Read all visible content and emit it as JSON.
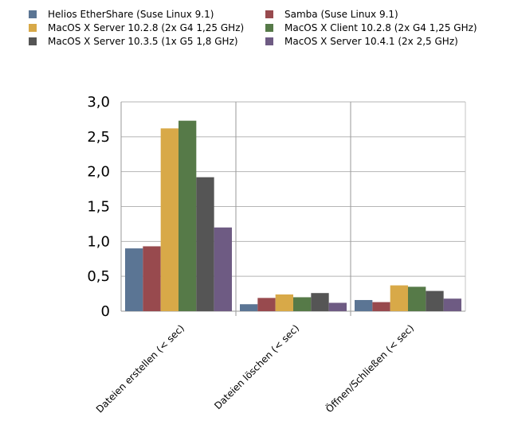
{
  "chart_data": {
    "type": "bar",
    "title": "",
    "xlabel": "",
    "ylabel": "",
    "ylim": [
      0,
      3.0
    ],
    "yticks": [
      "0",
      "0,5",
      "1,0",
      "1,5",
      "2,0",
      "2,5",
      "3,0"
    ],
    "grid": true,
    "legend_position": "top",
    "categories": [
      "Dateien erstellen (< sec)",
      "Dateien löschen (< sec)",
      "Öffnen/Schließen (< sec)"
    ],
    "series": [
      {
        "name": "Helios EtherShare (Suse Linux 9.1)",
        "color": "#5b7594",
        "values": [
          0.9,
          0.1,
          0.16
        ]
      },
      {
        "name": "Samba (Suse Linux 9.1)",
        "color": "#984a4e",
        "values": [
          0.93,
          0.19,
          0.13
        ]
      },
      {
        "name": "MacOS X Server 10.2.8 (2x G4 1,25 GHz)",
        "color": "#d8a948",
        "values": [
          2.62,
          0.24,
          0.37
        ]
      },
      {
        "name": "MacOS X Client 10.2.8 (2x G4 1,25 GHz)",
        "color": "#567a48",
        "values": [
          2.73,
          0.2,
          0.35
        ]
      },
      {
        "name": "MacOS X Server 10.3.5 (1x G5 1,8 GHz)",
        "color": "#555555",
        "values": [
          1.92,
          0.26,
          0.29
        ]
      },
      {
        "name": "MacOS X Server 10.4.1 (2x 2,5 GHz)",
        "color": "#6e5b83",
        "values": [
          1.2,
          0.12,
          0.18
        ]
      }
    ]
  }
}
